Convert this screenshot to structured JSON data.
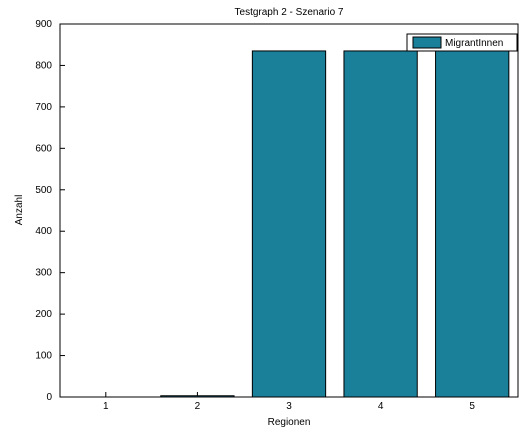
{
  "chart_data": {
    "type": "bar",
    "title": "Testgraph 2 - Szenario 7",
    "xlabel": "Regionen",
    "ylabel": "Anzahl",
    "categories": [
      "1",
      "2",
      "3",
      "4",
      "5"
    ],
    "series": [
      {
        "name": "MigrantInnen",
        "values": [
          0,
          3,
          835,
          835,
          835
        ]
      }
    ],
    "ylim": [
      0,
      900
    ],
    "yticks": [
      "0",
      "100",
      "200",
      "300",
      "400",
      "500",
      "600",
      "700",
      "800",
      "900"
    ],
    "grid": false,
    "legend_position": "top-right",
    "colors": {
      "bar": "#1a7f99",
      "bar_edge": "#000000",
      "axis": "#000000",
      "background": "#ffffff"
    }
  }
}
